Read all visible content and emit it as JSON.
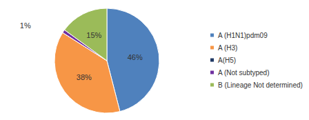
{
  "chart_data": {
    "type": "pie",
    "categories": [
      "A (H1N1)pdm09",
      "A (H3)",
      "A(H5)",
      "A (Not subtyped)",
      "B (Lineage Not determined)"
    ],
    "values": [
      46,
      38,
      0,
      1,
      15
    ],
    "value_labels": [
      "46%",
      "38%",
      null,
      "1%",
      "15%"
    ],
    "colors": [
      "#4f81bd",
      "#f79646",
      "#1f3864",
      "#7030a0",
      "#9bbb59"
    ],
    "data_labels": true,
    "legend": "right"
  }
}
